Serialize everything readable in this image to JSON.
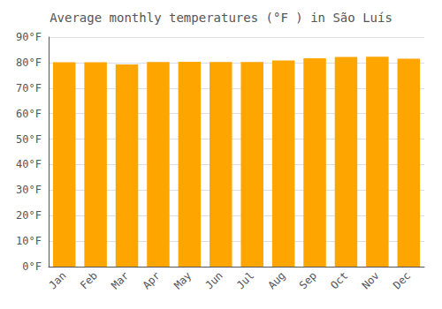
{
  "chart_data": {
    "type": "bar",
    "title": "Average monthly temperatures (°F ) in São Luís",
    "categories": [
      "Jan",
      "Feb",
      "Mar",
      "Apr",
      "May",
      "Jun",
      "Jul",
      "Aug",
      "Sep",
      "Oct",
      "Nov",
      "Dec"
    ],
    "values": [
      80.1,
      80.1,
      79.3,
      80.2,
      80.3,
      80.2,
      80.2,
      80.8,
      81.7,
      82.2,
      82.3,
      81.5
    ],
    "color": "#FFA500",
    "ylim": [
      0,
      90
    ],
    "yticks": [
      {
        "value": 0,
        "label": "0°F"
      },
      {
        "value": 10,
        "label": "10°F"
      },
      {
        "value": 20,
        "label": "20°F"
      },
      {
        "value": 30,
        "label": "30°F"
      },
      {
        "value": 40,
        "label": "40°F"
      },
      {
        "value": 50,
        "label": "50°F"
      },
      {
        "value": 60,
        "label": "60°F"
      },
      {
        "value": 70,
        "label": "70°F"
      },
      {
        "value": 80,
        "label": "80°F"
      },
      {
        "value": 90,
        "label": "90°F"
      }
    ],
    "grid": true
  }
}
